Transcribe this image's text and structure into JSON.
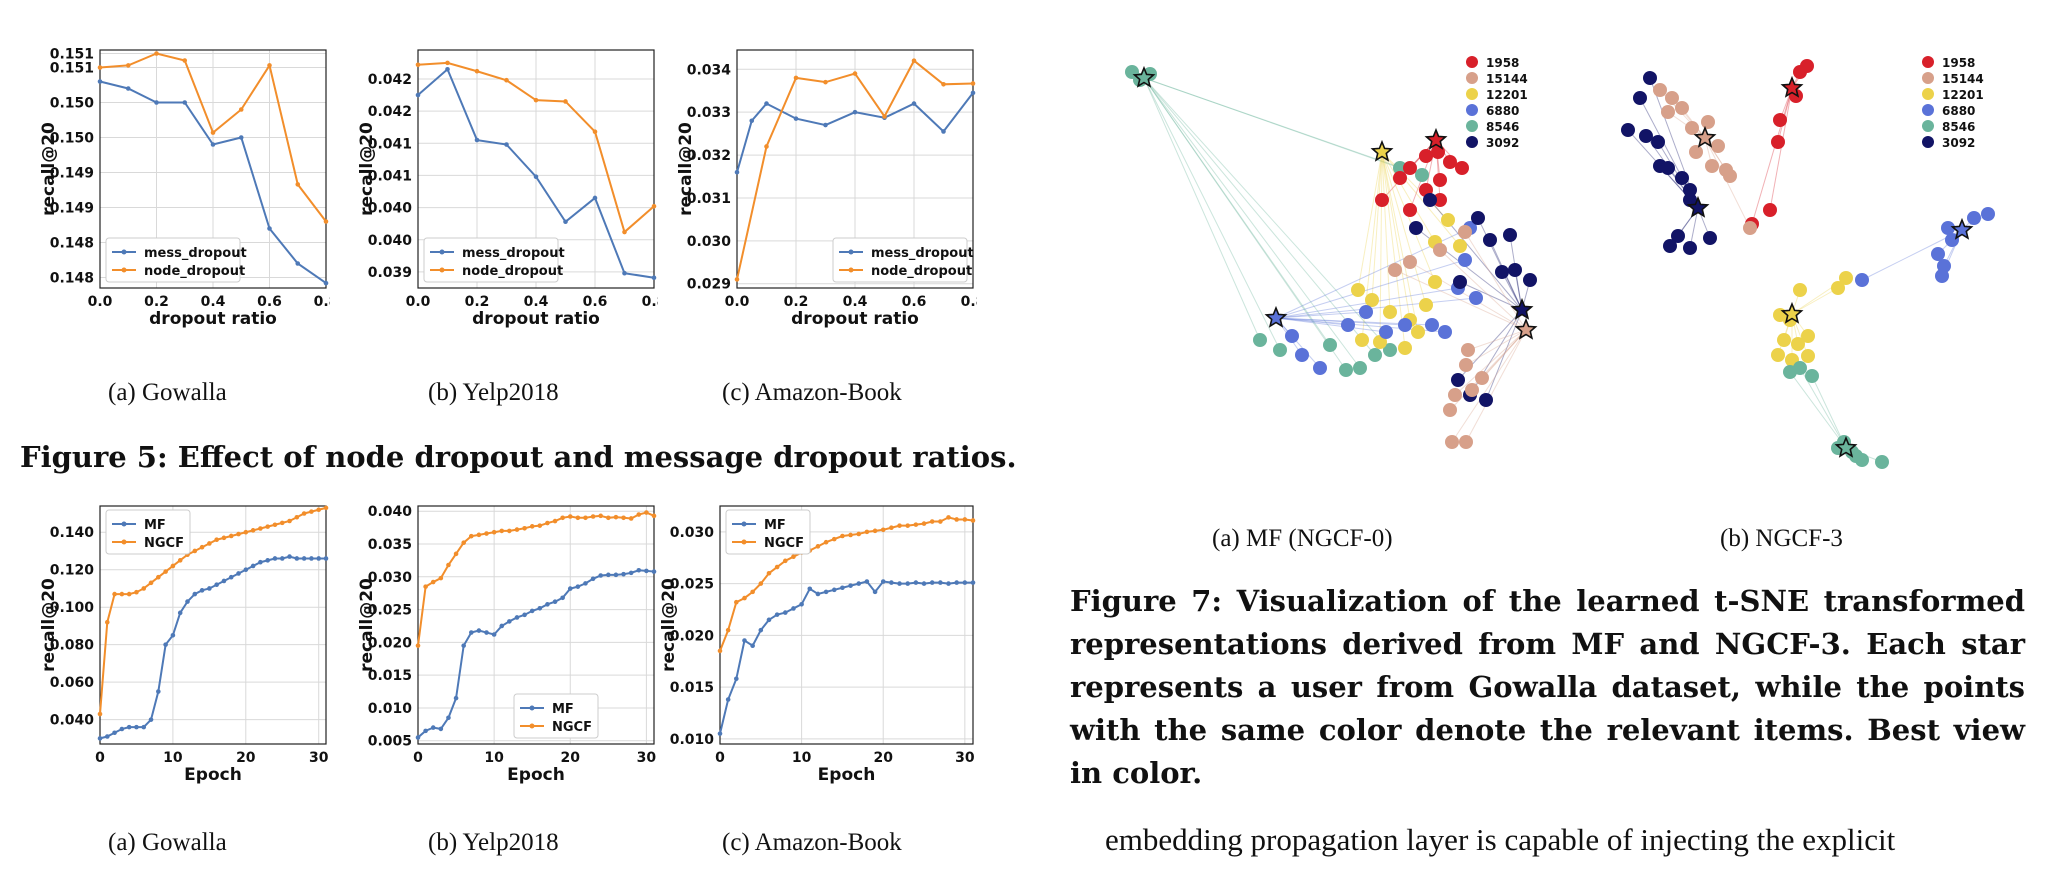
{
  "figure5": {
    "title": "Figure 5: Effect of node dropout and message dropout ratios.",
    "captions": [
      "(a)  Gowalla",
      "(b)  Yelp2018",
      "(c)  Amazon-Book"
    ]
  },
  "figure6": {
    "captions": [
      "(a)  Gowalla",
      "(b)  Yelp2018",
      "(c)  Amazon-Book"
    ]
  },
  "figure7": {
    "captions": [
      "(a)  MF (NGCF-0)",
      "(b)  NGCF-3"
    ],
    "caption": "Figure 7: Visualization of the learned t-SNE transformed representations derived from MF and NGCF-3. Each star represents a user from Gowalla dataset, while the points with the same color denote the relevant items. Best view in color.",
    "legend": [
      {
        "label": "1958",
        "color": "#d8202a"
      },
      {
        "label": "15144",
        "color": "#d7a08a"
      },
      {
        "label": "12201",
        "color": "#ecd24a"
      },
      {
        "label": "6880",
        "color": "#5a72d8"
      },
      {
        "label": "8546",
        "color": "#6ab49c"
      },
      {
        "label": "3092",
        "color": "#121466"
      }
    ]
  },
  "body_text": "embedding propagation layer is capable of injecting the explicit",
  "colors": {
    "mess": "#4e79b7",
    "node": "#f28e2b",
    "grid": "#d9d9d9"
  },
  "chart_data": [
    {
      "type": "line",
      "id": "fig5a",
      "xlabel": "dropout ratio",
      "ylabel": "recall@20",
      "xlim": [
        0,
        0.8
      ],
      "ylim": [
        0.1478,
        0.1512
      ],
      "xticks": [
        0,
        0.2,
        0.4,
        0.6,
        0.8
      ],
      "xtick_labels": [
        "0.0",
        "0.2",
        "0.4",
        "0.6",
        "0.8"
      ],
      "yticks": [
        0.14795,
        0.14845,
        0.14895,
        0.14945,
        0.14995,
        0.15045,
        0.15095,
        0.15115
      ],
      "ytick_labels": [
        "0.148",
        "0.148",
        "0.149",
        "0.149",
        "0.150",
        "0.150",
        "0.151",
        "0.151"
      ],
      "legend_pos": "bottom-left",
      "series": [
        {
          "name": "mess_dropout",
          "x": [
            0,
            0.1,
            0.2,
            0.3,
            0.4,
            0.5,
            0.6,
            0.7,
            0.8
          ],
          "y": [
            0.15075,
            0.15065,
            0.15045,
            0.15045,
            0.14985,
            0.14995,
            0.14865,
            0.14815,
            0.14787
          ]
        },
        {
          "name": "node_dropout",
          "x": [
            0,
            0.1,
            0.2,
            0.3,
            0.4,
            0.5,
            0.6,
            0.7,
            0.8
          ],
          "y": [
            0.15095,
            0.15098,
            0.15115,
            0.15105,
            0.15002,
            0.15035,
            0.15098,
            0.14928,
            0.14875
          ]
        }
      ]
    },
    {
      "type": "line",
      "id": "fig5b",
      "xlabel": "dropout ratio",
      "ylabel": "recall@20",
      "xlim": [
        0,
        0.8
      ],
      "ylim": [
        0.03875,
        0.04245
      ],
      "xticks": [
        0,
        0.2,
        0.4,
        0.6,
        0.8
      ],
      "xtick_labels": [
        "0.0",
        "0.2",
        "0.4",
        "0.6",
        "0.8"
      ],
      "yticks": [
        0.039,
        0.0395,
        0.04,
        0.0405,
        0.041,
        0.0415,
        0.042
      ],
      "ytick_labels": [
        "0.039",
        "0.040",
        "0.040",
        "0.041",
        "0.041",
        "0.042",
        "0.042"
      ],
      "legend_pos": "bottom-left",
      "series": [
        {
          "name": "mess_dropout",
          "x": [
            0,
            0.1,
            0.2,
            0.3,
            0.4,
            0.5,
            0.6,
            0.7,
            0.8
          ],
          "y": [
            0.04175,
            0.04215,
            0.04105,
            0.04098,
            0.04048,
            0.03978,
            0.04015,
            0.03898,
            0.03891
          ]
        },
        {
          "name": "node_dropout",
          "x": [
            0,
            0.1,
            0.2,
            0.3,
            0.4,
            0.5,
            0.6,
            0.7,
            0.8
          ],
          "y": [
            0.04222,
            0.04225,
            0.04212,
            0.04198,
            0.04167,
            0.04165,
            0.04118,
            0.03962,
            0.04002
          ]
        }
      ]
    },
    {
      "type": "line",
      "id": "fig5c",
      "xlabel": "dropout ratio",
      "ylabel": "recall@20",
      "xlim": [
        0,
        0.8
      ],
      "ylim": [
        0.0289,
        0.03445
      ],
      "xticks": [
        0,
        0.2,
        0.4,
        0.6,
        0.8
      ],
      "xtick_labels": [
        "0.0",
        "0.2",
        "0.4",
        "0.6",
        "0.8"
      ],
      "yticks": [
        0.029,
        0.03,
        0.031,
        0.032,
        0.033,
        0.034
      ],
      "ytick_labels": [
        "0.029",
        "0.030",
        "0.031",
        "0.032",
        "0.033",
        "0.034"
      ],
      "legend_pos": "bottom-right",
      "series": [
        {
          "name": "mess_dropout",
          "x": [
            0,
            0.05,
            0.1,
            0.2,
            0.3,
            0.4,
            0.5,
            0.6,
            0.7,
            0.8
          ],
          "y": [
            0.0316,
            0.0328,
            0.0332,
            0.03285,
            0.0327,
            0.033,
            0.03287,
            0.0332,
            0.03255,
            0.03345
          ]
        },
        {
          "name": "node_dropout",
          "x": [
            0,
            0.1,
            0.2,
            0.3,
            0.4,
            0.5,
            0.6,
            0.7,
            0.8
          ],
          "y": [
            0.0291,
            0.0322,
            0.0338,
            0.0337,
            0.0339,
            0.0329,
            0.0342,
            0.03365,
            0.03367
          ]
        }
      ]
    },
    {
      "type": "line",
      "id": "fig6a",
      "xlabel": "Epoch",
      "ylabel": "recall@20",
      "xlim": [
        0,
        31
      ],
      "ylim": [
        0.027,
        0.154
      ],
      "xticks": [
        0,
        10,
        20,
        30
      ],
      "xtick_labels": [
        "0",
        "10",
        "20",
        "30"
      ],
      "yticks": [
        0.04,
        0.06,
        0.08,
        0.1,
        0.12,
        0.14
      ],
      "ytick_labels": [
        "0.040",
        "0.060",
        "0.080",
        "0.100",
        "0.120",
        "0.140"
      ],
      "legend_pos": "top-left",
      "series": [
        {
          "name": "MF",
          "x": [
            0,
            1,
            2,
            3,
            4,
            5,
            6,
            7,
            8,
            9,
            10,
            11,
            12,
            13,
            14,
            15,
            16,
            17,
            18,
            19,
            20,
            21,
            22,
            23,
            24,
            25,
            26,
            27,
            28,
            29,
            30,
            31
          ],
          "y": [
            0.03,
            0.031,
            0.033,
            0.035,
            0.036,
            0.036,
            0.036,
            0.04,
            0.055,
            0.08,
            0.085,
            0.097,
            0.103,
            0.107,
            0.109,
            0.11,
            0.112,
            0.114,
            0.116,
            0.118,
            0.12,
            0.122,
            0.124,
            0.125,
            0.126,
            0.126,
            0.127,
            0.126,
            0.126,
            0.126,
            0.126,
            0.126
          ]
        },
        {
          "name": "NGCF",
          "x": [
            0,
            1,
            2,
            3,
            4,
            5,
            6,
            7,
            8,
            9,
            10,
            11,
            12,
            13,
            14,
            15,
            16,
            17,
            18,
            19,
            20,
            21,
            22,
            23,
            24,
            25,
            26,
            27,
            28,
            29,
            30,
            31
          ],
          "y": [
            0.043,
            0.092,
            0.107,
            0.107,
            0.107,
            0.108,
            0.11,
            0.113,
            0.116,
            0.119,
            0.122,
            0.125,
            0.128,
            0.13,
            0.132,
            0.134,
            0.136,
            0.137,
            0.138,
            0.139,
            0.14,
            0.141,
            0.142,
            0.143,
            0.144,
            0.145,
            0.146,
            0.148,
            0.15,
            0.151,
            0.152,
            0.153
          ]
        }
      ]
    },
    {
      "type": "line",
      "id": "fig6b",
      "xlabel": "Epoch",
      "ylabel": "recall@20",
      "xlim": [
        0,
        31
      ],
      "ylim": [
        0.0045,
        0.0408
      ],
      "xticks": [
        0,
        10,
        20,
        30
      ],
      "xtick_labels": [
        "0",
        "10",
        "20",
        "30"
      ],
      "yticks": [
        0.005,
        0.01,
        0.015,
        0.02,
        0.025,
        0.03,
        0.035,
        0.04
      ],
      "ytick_labels": [
        "0.005",
        "0.010",
        "0.015",
        "0.020",
        "0.025",
        "0.030",
        "0.035",
        "0.040"
      ],
      "legend_pos": "bottom-right",
      "series": [
        {
          "name": "MF",
          "x": [
            0,
            1,
            2,
            3,
            4,
            5,
            6,
            7,
            8,
            9,
            10,
            11,
            12,
            13,
            14,
            15,
            16,
            17,
            18,
            19,
            20,
            21,
            22,
            23,
            24,
            25,
            26,
            27,
            28,
            29,
            30,
            31
          ],
          "y": [
            0.0055,
            0.0065,
            0.007,
            0.0068,
            0.0085,
            0.0115,
            0.0195,
            0.0215,
            0.0218,
            0.0215,
            0.0212,
            0.0225,
            0.0232,
            0.0238,
            0.0242,
            0.0248,
            0.0252,
            0.0258,
            0.0262,
            0.0268,
            0.0282,
            0.0285,
            0.029,
            0.0297,
            0.0302,
            0.0303,
            0.0303,
            0.0304,
            0.0306,
            0.031,
            0.0309,
            0.0308
          ]
        },
        {
          "name": "NGCF",
          "x": [
            0,
            1,
            2,
            3,
            4,
            5,
            6,
            7,
            8,
            9,
            10,
            11,
            12,
            13,
            14,
            15,
            16,
            17,
            18,
            19,
            20,
            21,
            22,
            23,
            24,
            25,
            26,
            27,
            28,
            29,
            30,
            31
          ],
          "y": [
            0.0195,
            0.0285,
            0.0292,
            0.0298,
            0.0318,
            0.0335,
            0.0352,
            0.0362,
            0.0364,
            0.0366,
            0.0368,
            0.037,
            0.037,
            0.0372,
            0.0374,
            0.0377,
            0.0378,
            0.0382,
            0.0385,
            0.039,
            0.0392,
            0.039,
            0.039,
            0.0392,
            0.0393,
            0.039,
            0.0391,
            0.039,
            0.0389,
            0.0395,
            0.0398,
            0.0393
          ]
        }
      ]
    },
    {
      "type": "line",
      "id": "fig6c",
      "xlabel": "Epoch",
      "ylabel": "recall@20",
      "xlim": [
        0,
        31
      ],
      "ylim": [
        0.0095,
        0.0325
      ],
      "xticks": [
        0,
        10,
        20,
        30
      ],
      "xtick_labels": [
        "0",
        "10",
        "20",
        "30"
      ],
      "yticks": [
        0.01,
        0.015,
        0.02,
        0.025,
        0.03
      ],
      "ytick_labels": [
        "0.010",
        "0.015",
        "0.020",
        "0.025",
        "0.030"
      ],
      "legend_pos": "top-left",
      "series": [
        {
          "name": "MF",
          "x": [
            0,
            1,
            2,
            3,
            4,
            5,
            6,
            7,
            8,
            9,
            10,
            11,
            12,
            13,
            14,
            15,
            16,
            17,
            18,
            19,
            20,
            21,
            22,
            23,
            24,
            25,
            26,
            27,
            28,
            29,
            30,
            31
          ],
          "y": [
            0.0105,
            0.0138,
            0.0158,
            0.0195,
            0.019,
            0.0205,
            0.0215,
            0.022,
            0.0222,
            0.0226,
            0.023,
            0.0245,
            0.024,
            0.0242,
            0.0244,
            0.0246,
            0.0248,
            0.025,
            0.0252,
            0.0242,
            0.0252,
            0.0251,
            0.025,
            0.025,
            0.0251,
            0.025,
            0.0251,
            0.0251,
            0.025,
            0.0251,
            0.0251,
            0.0251
          ]
        },
        {
          "name": "NGCF",
          "x": [
            0,
            1,
            2,
            3,
            4,
            5,
            6,
            7,
            8,
            9,
            10,
            11,
            12,
            13,
            14,
            15,
            16,
            17,
            18,
            19,
            20,
            21,
            22,
            23,
            24,
            25,
            26,
            27,
            28,
            29,
            30,
            31
          ],
          "y": [
            0.0185,
            0.0205,
            0.0232,
            0.0236,
            0.0242,
            0.025,
            0.026,
            0.0266,
            0.0272,
            0.0276,
            0.028,
            0.0282,
            0.0286,
            0.029,
            0.0293,
            0.0296,
            0.0297,
            0.0298,
            0.03,
            0.0301,
            0.0302,
            0.0304,
            0.0306,
            0.0306,
            0.0307,
            0.0308,
            0.031,
            0.031,
            0.0314,
            0.0312,
            0.0312,
            0.0311
          ]
        }
      ]
    }
  ]
}
